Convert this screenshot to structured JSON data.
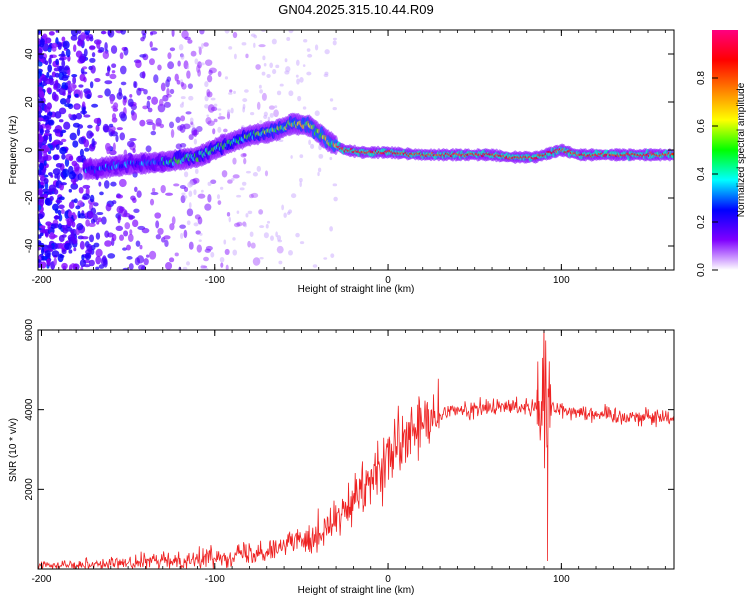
{
  "title": "GN04.2025.315.10.44.R09",
  "chart_data": [
    {
      "type": "heatmap",
      "name": "spectrogram",
      "xlabel": "Height of straight line (km)",
      "ylabel": "Frequency (Hz)",
      "xlim": [
        -202,
        165
      ],
      "ylim": [
        -50,
        50
      ],
      "xticks": [
        -200,
        -100,
        0,
        100
      ],
      "yticks": [
        -40,
        -20,
        0,
        20,
        40
      ],
      "ridge": [
        [
          -200,
          -8
        ],
        [
          -170,
          -8
        ],
        [
          -150,
          -6
        ],
        [
          -130,
          -5
        ],
        [
          -110,
          -3
        ],
        [
          -95,
          2
        ],
        [
          -80,
          6
        ],
        [
          -65,
          8
        ],
        [
          -55,
          11
        ],
        [
          -45,
          10
        ],
        [
          -35,
          4
        ],
        [
          -25,
          0
        ],
        [
          -15,
          -1
        ],
        [
          0,
          -1
        ],
        [
          20,
          -2
        ],
        [
          40,
          -2
        ],
        [
          60,
          -2
        ],
        [
          70,
          -3
        ],
        [
          85,
          -3
        ],
        [
          100,
          0
        ],
        [
          110,
          -2
        ],
        [
          130,
          -2
        ],
        [
          165,
          -2
        ]
      ],
      "colorbar": {
        "label": "Normalized spectral amplitude",
        "ticks": [
          0.0,
          0.2,
          0.4,
          0.6,
          0.8
        ],
        "range": [
          0,
          1
        ],
        "colors": [
          "#ffffff",
          "#8000ff",
          "#0000ff",
          "#00ffff",
          "#00ff00",
          "#ffff00",
          "#ff8000",
          "#ff0000",
          "#ff0080"
        ]
      }
    },
    {
      "type": "line",
      "name": "snr",
      "xlabel": "Height of straight line (km)",
      "ylabel": "SNR (10 * v/v)",
      "xlim": [
        -202,
        165
      ],
      "ylim": [
        0,
        6000
      ],
      "xticks": [
        -200,
        -100,
        0,
        100
      ],
      "yticks": [
        2000,
        4000,
        6000
      ],
      "color": "#ee2222",
      "trend": [
        [
          -200,
          100
        ],
        [
          -150,
          150
        ],
        [
          -110,
          250
        ],
        [
          -80,
          400
        ],
        [
          -60,
          600
        ],
        [
          -40,
          900
        ],
        [
          -25,
          1400
        ],
        [
          -10,
          2200
        ],
        [
          5,
          3000
        ],
        [
          20,
          3600
        ],
        [
          35,
          3950
        ],
        [
          60,
          4050
        ],
        [
          80,
          4100
        ],
        [
          95,
          4050
        ],
        [
          110,
          3950
        ],
        [
          130,
          3850
        ],
        [
          165,
          3800
        ]
      ],
      "events": [
        [
          90,
          6000
        ],
        [
          92,
          200
        ],
        [
          86,
          4500
        ]
      ]
    }
  ]
}
